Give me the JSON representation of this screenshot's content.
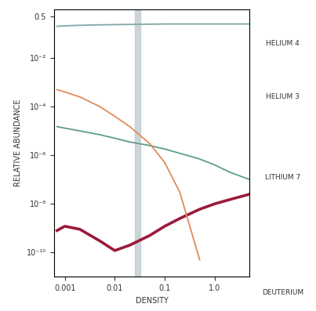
{
  "chart_data": {
    "type": "line",
    "x_label": "DENSITY",
    "y_label": "RELATIVE ABUNDANCE",
    "log": true,
    "grid": false,
    "x": [
      0.0007,
      0.001,
      0.002,
      0.005,
      0.01,
      0.02,
      0.05,
      0.1,
      0.2,
      0.5,
      1,
      2,
      5
    ],
    "xlim": [
      0.0006,
      5
    ],
    "xticks": [
      0.001,
      0.01,
      0.1,
      1.0
    ],
    "ylim": [
      1e-11,
      1
    ],
    "yticks": [
      {
        "value": 1e-10,
        "label": "10⁻¹⁰"
      },
      {
        "value": 1e-08,
        "label": "10⁻⁸"
      },
      {
        "value": 1e-06,
        "label": "10⁻⁶"
      },
      {
        "value": 0.0001,
        "label": "10⁻⁴"
      },
      {
        "value": 0.01,
        "label": "10⁻²"
      },
      0.5
    ],
    "highlight_band": [
      0.025,
      0.032
    ],
    "series": [
      {
        "name": "HELIUM 4",
        "color": "#7fa9a8",
        "values": [
          0.2,
          0.21,
          0.22,
          0.23,
          0.235,
          0.24,
          0.245,
          0.25,
          0.25,
          0.25,
          0.25,
          0.25,
          0.25
        ]
      },
      {
        "name": "HELIUM 3",
        "color": "#5e9c8a",
        "values": [
          1.5e-05,
          1.3e-05,
          1e-05,
          7e-06,
          5e-06,
          3.5e-06,
          2.5e-06,
          1.8e-06,
          1.2e-06,
          7e-07,
          4e-07,
          2e-07,
          1e-07
        ]
      },
      {
        "name": "LITHIUM 7",
        "color": "#9b1b3a",
        "values": [
          8e-10,
          1.2e-09,
          9e-10,
          3e-10,
          1.2e-10,
          2e-10,
          5e-10,
          1.2e-09,
          2.5e-09,
          6e-09,
          1e-08,
          1.5e-08,
          2.5e-08
        ]
      },
      {
        "name": "DEUTERIUM",
        "color": "#e08a5a",
        "values": [
          0.0005,
          0.0004,
          0.00025,
          0.0001,
          4e-05,
          1.5e-05,
          3e-06,
          5e-07,
          3e-08,
          5e-11,
          null,
          null,
          null
        ]
      }
    ]
  }
}
